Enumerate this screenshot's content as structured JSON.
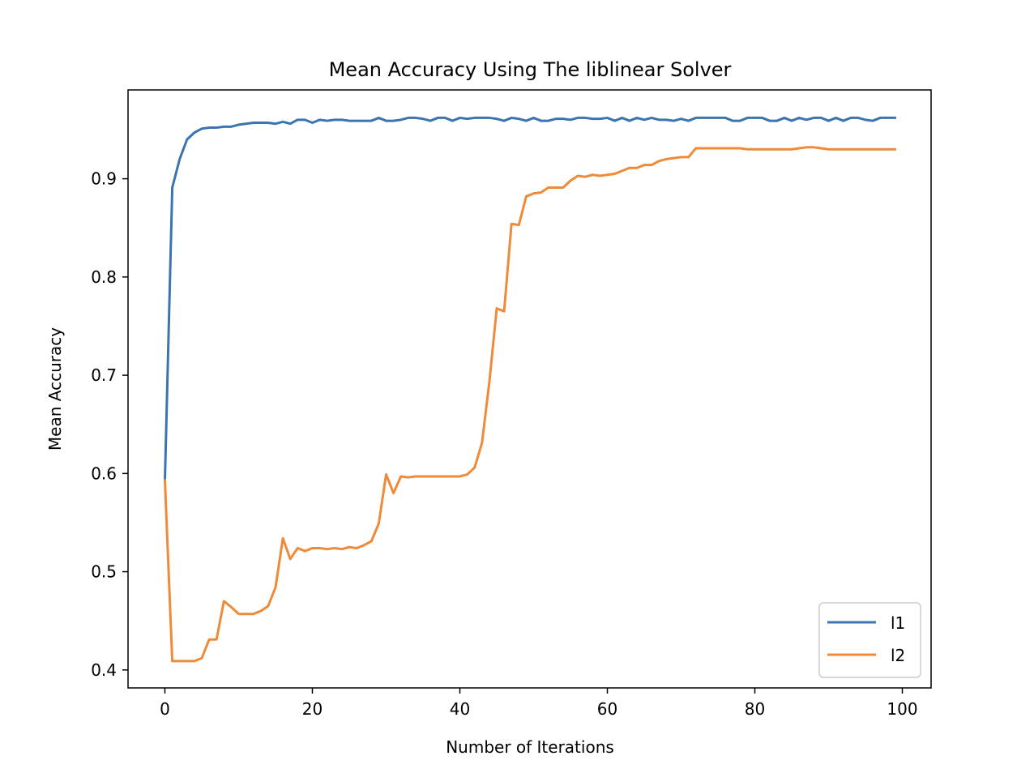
{
  "chart_data": {
    "type": "line",
    "title": "Mean Accuracy Using The liblinear Solver",
    "xlabel": "Number of Iterations",
    "ylabel": "Mean Accuracy",
    "xlim": [
      -5,
      103.9
    ],
    "ylim": [
      0.3817,
      0.9904
    ],
    "xticks": [
      0,
      20,
      40,
      60,
      80,
      100
    ],
    "yticks": [
      0.4,
      0.5,
      0.6,
      0.7,
      0.8,
      0.9
    ],
    "ytick_labels": [
      "0.4",
      "0.5",
      "0.6",
      "0.7",
      "0.8",
      "0.9"
    ],
    "grid": false,
    "legend_position": "lower right",
    "series": [
      {
        "name": "l1",
        "color": "#3a75b0",
        "x": [
          0,
          1,
          2,
          3,
          4,
          5,
          6,
          7,
          8,
          9,
          10,
          11,
          12,
          13,
          14,
          15,
          16,
          17,
          18,
          19,
          20,
          21,
          22,
          23,
          24,
          25,
          26,
          27,
          28,
          29,
          30,
          31,
          32,
          33,
          34,
          35,
          36,
          37,
          38,
          39,
          40,
          41,
          42,
          43,
          44,
          45,
          46,
          47,
          48,
          49,
          50,
          51,
          52,
          53,
          54,
          55,
          56,
          57,
          58,
          59,
          60,
          61,
          62,
          63,
          64,
          65,
          66,
          67,
          68,
          69,
          70,
          71,
          72,
          73,
          74,
          75,
          76,
          77,
          78,
          79,
          80,
          81,
          82,
          83,
          84,
          85,
          86,
          87,
          88,
          89,
          90,
          91,
          92,
          93,
          94,
          95,
          96,
          97,
          98,
          99
        ],
        "y": [
          0.593,
          0.891,
          0.92,
          0.94,
          0.947,
          0.951,
          0.952,
          0.952,
          0.953,
          0.953,
          0.955,
          0.956,
          0.957,
          0.957,
          0.957,
          0.956,
          0.958,
          0.956,
          0.96,
          0.96,
          0.957,
          0.96,
          0.959,
          0.96,
          0.96,
          0.959,
          0.959,
          0.959,
          0.959,
          0.962,
          0.959,
          0.959,
          0.96,
          0.962,
          0.962,
          0.961,
          0.959,
          0.962,
          0.962,
          0.959,
          0.962,
          0.961,
          0.962,
          0.962,
          0.962,
          0.961,
          0.959,
          0.962,
          0.961,
          0.959,
          0.962,
          0.959,
          0.959,
          0.961,
          0.961,
          0.96,
          0.962,
          0.962,
          0.961,
          0.961,
          0.962,
          0.959,
          0.962,
          0.959,
          0.962,
          0.96,
          0.962,
          0.96,
          0.96,
          0.959,
          0.961,
          0.959,
          0.962,
          0.962,
          0.962,
          0.962,
          0.962,
          0.959,
          0.959,
          0.962,
          0.962,
          0.962,
          0.959,
          0.959,
          0.962,
          0.959,
          0.962,
          0.96,
          0.962,
          0.962,
          0.959,
          0.962,
          0.959,
          0.962,
          0.962,
          0.96,
          0.959,
          0.962,
          0.962,
          0.962
        ]
      },
      {
        "name": "l2",
        "color": "#ee8a38",
        "x": [
          0,
          1,
          2,
          3,
          4,
          5,
          6,
          7,
          8,
          9,
          10,
          11,
          12,
          13,
          14,
          15,
          16,
          17,
          18,
          19,
          20,
          21,
          22,
          23,
          24,
          25,
          26,
          27,
          28,
          29,
          30,
          31,
          32,
          33,
          34,
          35,
          36,
          37,
          38,
          39,
          40,
          41,
          42,
          43,
          44,
          45,
          46,
          47,
          48,
          49,
          50,
          51,
          52,
          53,
          54,
          55,
          56,
          57,
          58,
          59,
          60,
          61,
          62,
          63,
          64,
          65,
          66,
          67,
          68,
          69,
          70,
          71,
          72,
          73,
          74,
          75,
          76,
          77,
          78,
          79,
          80,
          81,
          82,
          83,
          84,
          85,
          86,
          87,
          88,
          89,
          90,
          91,
          92,
          93,
          94,
          95,
          96,
          97,
          98,
          99
        ],
        "y": [
          0.593,
          0.409,
          0.409,
          0.409,
          0.409,
          0.412,
          0.431,
          0.431,
          0.47,
          0.464,
          0.457,
          0.457,
          0.457,
          0.46,
          0.465,
          0.484,
          0.534,
          0.513,
          0.524,
          0.521,
          0.524,
          0.524,
          0.523,
          0.524,
          0.523,
          0.525,
          0.524,
          0.527,
          0.531,
          0.549,
          0.599,
          0.58,
          0.597,
          0.596,
          0.597,
          0.597,
          0.597,
          0.597,
          0.597,
          0.597,
          0.597,
          0.599,
          0.606,
          0.631,
          0.693,
          0.768,
          0.765,
          0.854,
          0.853,
          0.882,
          0.885,
          0.886,
          0.891,
          0.891,
          0.891,
          0.898,
          0.903,
          0.902,
          0.904,
          0.903,
          0.904,
          0.905,
          0.908,
          0.911,
          0.911,
          0.914,
          0.914,
          0.918,
          0.92,
          0.921,
          0.922,
          0.922,
          0.931,
          0.931,
          0.931,
          0.931,
          0.931,
          0.931,
          0.931,
          0.93,
          0.93,
          0.93,
          0.93,
          0.93,
          0.93,
          0.93,
          0.931,
          0.932,
          0.932,
          0.931,
          0.93,
          0.93,
          0.93,
          0.93,
          0.93,
          0.93,
          0.93,
          0.93,
          0.93,
          0.93
        ]
      }
    ]
  }
}
